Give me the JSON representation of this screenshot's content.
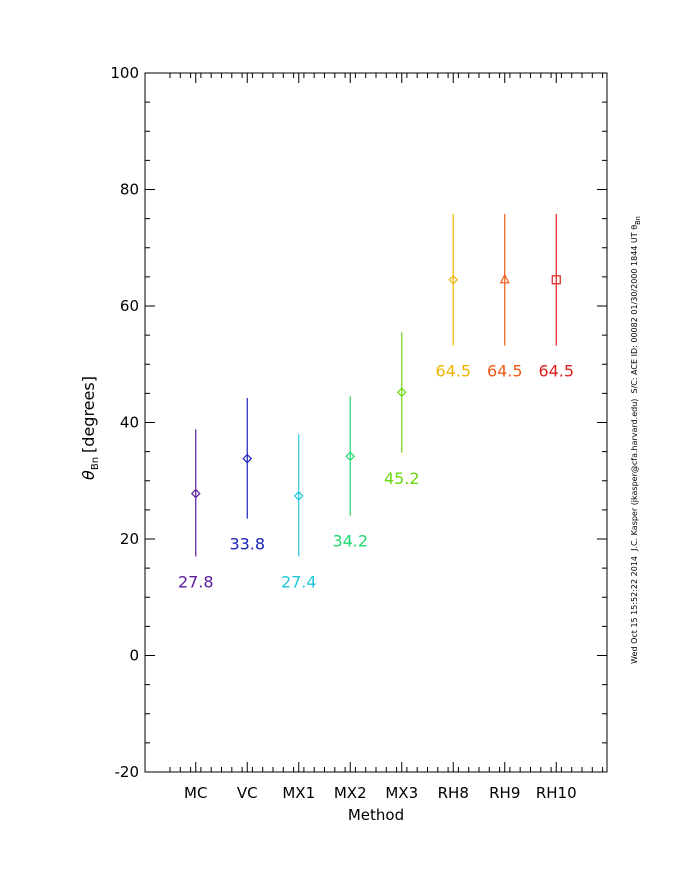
{
  "chart_data": {
    "type": "scatter",
    "xlabel": "Method",
    "ylabel_symbol": "θ",
    "ylabel_subscript": "Bn",
    "ylabel_rest": "[degrees]",
    "ylim": [
      -20,
      100
    ],
    "yticks": [
      -20,
      0,
      20,
      40,
      60,
      80,
      100
    ],
    "grid": false,
    "categories": [
      "MC",
      "VC",
      "MX1",
      "MX2",
      "MX3",
      "RH8",
      "RH9",
      "RH10"
    ],
    "points": [
      {
        "method": "MC",
        "value": 27.8,
        "low": 17.0,
        "high": 38.8,
        "label": "27.8",
        "color": "#5a1a9a",
        "marker": "diamond"
      },
      {
        "method": "VC",
        "value": 33.8,
        "low": 23.5,
        "high": 44.2,
        "label": "33.8",
        "color": "#1a22b8",
        "marker": "diamond"
      },
      {
        "method": "MX1",
        "value": 27.4,
        "low": 17.0,
        "high": 38.0,
        "label": "27.4",
        "color": "#1ec8d8",
        "marker": "diamond"
      },
      {
        "method": "MX2",
        "value": 34.2,
        "low": 24.0,
        "high": 44.5,
        "label": "34.2",
        "color": "#22d870",
        "marker": "diamond"
      },
      {
        "method": "MX3",
        "value": 45.2,
        "low": 34.8,
        "high": 55.5,
        "label": "45.2",
        "color": "#6ad80e",
        "marker": "diamond"
      },
      {
        "method": "RH8",
        "value": 64.5,
        "low": 53.2,
        "high": 75.8,
        "label": "64.5",
        "color": "#f0b400",
        "marker": "diamond"
      },
      {
        "method": "RH9",
        "value": 64.5,
        "low": 53.2,
        "high": 75.8,
        "label": "64.5",
        "color": "#ee5a14",
        "marker": "triangle"
      },
      {
        "method": "RH10",
        "value": 64.5,
        "low": 53.2,
        "high": 75.8,
        "label": "64.5",
        "color": "#e01e1e",
        "marker": "square"
      }
    ]
  },
  "side_annotation": {
    "date": "Wed Oct 15 15:52:22 2014",
    "author": "J.C. Kasper (jkasper@cfa.harvard.edu)",
    "spacecraft": "S/C: ACE  ID: 00082 01/30/2000  1844 UT θ",
    "sub": "Bn"
  }
}
